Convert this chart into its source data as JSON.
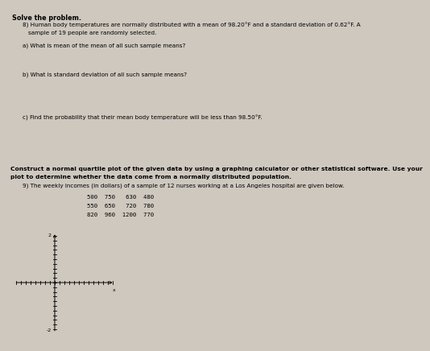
{
  "background_color": "#cec8bf",
  "title_bold": "Solve the problem.",
  "problem8_header": "8) Human body temperatures are normally distributed with a mean of 98.20°F and a standard deviation of 0.62°F. A",
  "problem8_header2": "sample of 19 people are randomly selected.",
  "part_a": "a) What is mean of the mean of all such sample means?",
  "part_b": "b) What is standard deviation of all such sample means?",
  "part_c": "c) Find the probability that their mean body temperature will be less than 98.50°F.",
  "construct_header1": "Construct a normal quartile plot of the given data by using a graphing calculator or other statistical software. Use your",
  "construct_header2": "plot to determine whether the data come from a normally distributed population.",
  "problem9": "9) The weekly incomes (in dollars) of a sample of 12 nurses working at a Los Angeles hospital are given below.",
  "data_row1": "500  750   630  480",
  "data_row2": "550  650   720  780",
  "data_row3": "820  960  1200  770"
}
